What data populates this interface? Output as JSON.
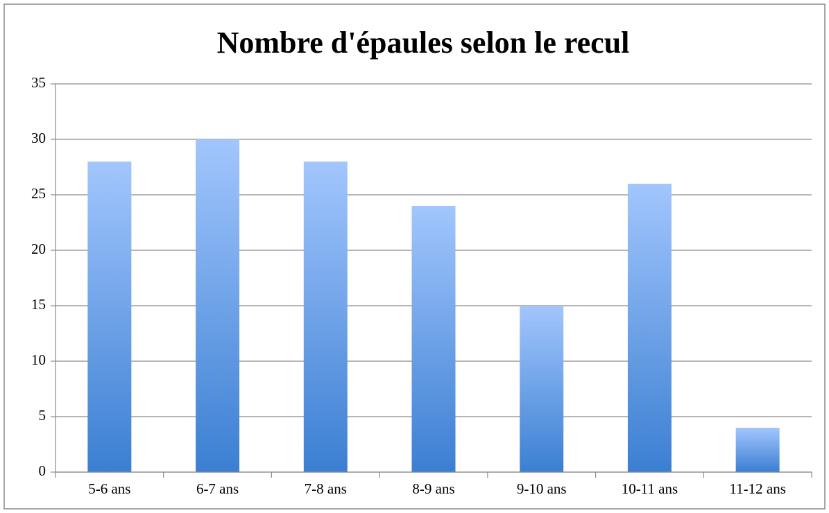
{
  "chart_data": {
    "type": "bar",
    "title": "Nombre d'épaules selon le recul",
    "categories": [
      "5-6 ans",
      "6-7 ans",
      "7-8 ans",
      "8-9 ans",
      "9-10 ans",
      "10-11 ans",
      "11-12 ans"
    ],
    "values": [
      28,
      30,
      28,
      24,
      15,
      26,
      4
    ],
    "gradient": [
      "#a2c6fd",
      "#3b7fd2"
    ],
    "ylim": [
      0,
      35
    ],
    "yticks": [
      0,
      5,
      10,
      15,
      20,
      25,
      30,
      35
    ],
    "grid": true
  }
}
